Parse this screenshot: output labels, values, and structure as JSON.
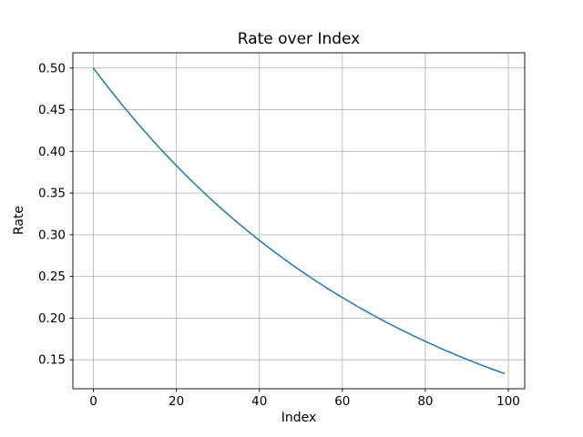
{
  "figure": {
    "background_color": "#ffffff",
    "text_color": "#000000"
  },
  "chart_data": {
    "type": "line",
    "title": "Rate over Index",
    "xlabel": "Index",
    "ylabel": "Rate",
    "grid": true,
    "legend": "none",
    "line_color": "#1f77b4",
    "line_width": 1.5,
    "grid_color": "#b0b0b0",
    "spine_color": "#000000",
    "xlim": [
      -4.95,
      103.95
    ],
    "ylim": [
      0.11525,
      0.51832
    ],
    "xticks": [
      0,
      20,
      40,
      60,
      80,
      100
    ],
    "xtick_labels": [
      "0",
      "20",
      "40",
      "60",
      "80",
      "100"
    ],
    "yticks": [
      0.15,
      0.2,
      0.25,
      0.3,
      0.35,
      0.4,
      0.45,
      0.5
    ],
    "ytick_labels": [
      "0.15",
      "0.20",
      "0.25",
      "0.30",
      "0.35",
      "0.40",
      "0.45",
      "0.50"
    ],
    "x": [
      0,
      1,
      2,
      3,
      4,
      5,
      6,
      7,
      8,
      9,
      10,
      11,
      12,
      13,
      14,
      15,
      16,
      17,
      18,
      19,
      20,
      21,
      22,
      23,
      24,
      25,
      26,
      27,
      28,
      29,
      30,
      31,
      32,
      33,
      34,
      35,
      36,
      37,
      38,
      39,
      40,
      41,
      42,
      43,
      44,
      45,
      46,
      47,
      48,
      49,
      50,
      51,
      52,
      53,
      54,
      55,
      56,
      57,
      58,
      59,
      60,
      61,
      62,
      63,
      64,
      65,
      66,
      67,
      68,
      69,
      70,
      71,
      72,
      73,
      74,
      75,
      76,
      77,
      78,
      79,
      80,
      81,
      82,
      83,
      84,
      85,
      86,
      87,
      88,
      89,
      90,
      91,
      92,
      93,
      94,
      95,
      96,
      97,
      98,
      99
    ],
    "series": [
      {
        "name": "rate",
        "color": "#1f77b4",
        "values": [
          0.5,
          0.49338,
          0.48684,
          0.48039,
          0.47403,
          0.46775,
          0.46156,
          0.45545,
          0.44942,
          0.44346,
          0.43759,
          0.43179,
          0.42607,
          0.42043,
          0.41486,
          0.40937,
          0.40394,
          0.39859,
          0.39331,
          0.3881,
          0.38296,
          0.37789,
          0.37289,
          0.36795,
          0.36307,
          0.35827,
          0.35352,
          0.34884,
          0.34422,
          0.33966,
          0.33516,
          0.33072,
          0.32634,
          0.32202,
          0.31775,
          0.31354,
          0.30939,
          0.30529,
          0.30125,
          0.29726,
          0.29332,
          0.28944,
          0.2856,
          0.28182,
          0.27809,
          0.27441,
          0.27077,
          0.26719,
          0.26365,
          0.26015,
          0.25671,
          0.25331,
          0.24995,
          0.24664,
          0.24338,
          0.24015,
          0.23697,
          0.23383,
          0.23074,
          0.22768,
          0.22466,
          0.22169,
          0.21875,
          0.21586,
          0.213,
          0.21018,
          0.20739,
          0.20464,
          0.20193,
          0.19926,
          0.19662,
          0.19402,
          0.19145,
          0.18891,
          0.18641,
          0.18394,
          0.1815,
          0.1791,
          0.17673,
          0.17439,
          0.17208,
          0.1698,
          0.16755,
          0.16533,
          0.16314,
          0.16098,
          0.15885,
          0.15674,
          0.15467,
          0.15262,
          0.1506,
          0.1486,
          0.14663,
          0.14469,
          0.14278,
          0.14088,
          0.13902,
          0.13718,
          0.13536,
          0.13357
        ]
      }
    ]
  }
}
